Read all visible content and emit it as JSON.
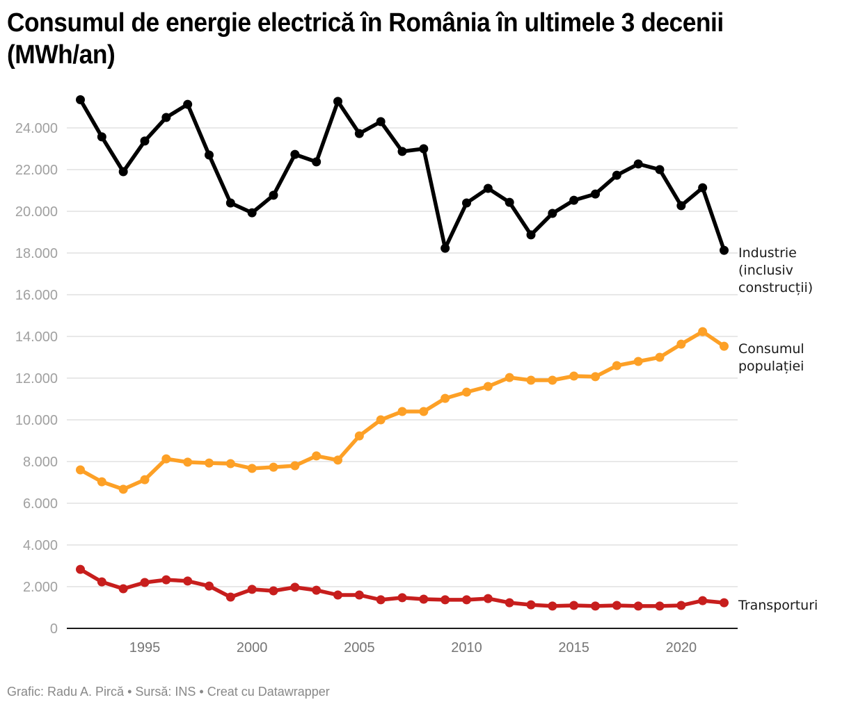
{
  "title": "Consumul de energie electrică în România în ultimele 3 decenii (MWh/an)",
  "footer": "Grafic: Radu A. Pircă • Sursă: INS • Creat cu Datawrapper",
  "chart_data": {
    "type": "line",
    "title": "Consumul de energie electrică în România în ultimele 3 decenii (MWh/an)",
    "xlabel": "",
    "ylabel": "",
    "x": [
      1992,
      1993,
      1994,
      1995,
      1996,
      1997,
      1998,
      1999,
      2000,
      2001,
      2002,
      2003,
      2004,
      2005,
      2006,
      2007,
      2008,
      2009,
      2010,
      2011,
      2012,
      2013,
      2014,
      2015,
      2016,
      2017,
      2018,
      2019,
      2020,
      2021,
      2022
    ],
    "xlim": [
      1992,
      2022
    ],
    "ylim": [
      0,
      25500
    ],
    "x_ticks": [
      1995,
      2000,
      2005,
      2010,
      2015,
      2020
    ],
    "x_tick_labels": [
      "1995",
      "2000",
      "2005",
      "2010",
      "2015",
      "2020"
    ],
    "y_ticks": [
      0,
      2000,
      4000,
      6000,
      8000,
      10000,
      12000,
      14000,
      16000,
      18000,
      20000,
      22000,
      24000
    ],
    "y_tick_labels": [
      "0",
      "2.000",
      "4.000",
      "6.000",
      "8.000",
      "10.000",
      "12.000",
      "14.000",
      "16.000",
      "18.000",
      "20.000",
      "22.000",
      "24.000"
    ],
    "grid": true,
    "legend": "direct-labels-right",
    "series": [
      {
        "name": "Industrie (inclusiv construcții)",
        "label_lines": [
          "Industrie",
          "(inclusiv",
          "construcții)"
        ],
        "color": "#000000",
        "values": [
          25350,
          23570,
          21900,
          23370,
          24500,
          25130,
          22700,
          20400,
          19930,
          20770,
          22730,
          22370,
          25270,
          23730,
          24300,
          22870,
          23000,
          18230,
          20400,
          21100,
          20430,
          18870,
          19900,
          20530,
          20830,
          21730,
          22270,
          22000,
          20270,
          21130,
          18130
        ]
      },
      {
        "name": "Consumul populației",
        "label_lines": [
          "Consumul",
          "populației"
        ],
        "color": "#fda026",
        "values": [
          7600,
          7030,
          6670,
          7130,
          8130,
          7970,
          7930,
          7900,
          7670,
          7730,
          7800,
          8270,
          8070,
          9230,
          10000,
          10400,
          10400,
          11030,
          11330,
          11600,
          12030,
          11900,
          11900,
          12100,
          12070,
          12600,
          12800,
          13000,
          13630,
          14230,
          13530
        ]
      },
      {
        "name": "Transporturi",
        "label_lines": [
          "Transporturi"
        ],
        "color": "#c71e1d",
        "values": [
          2830,
          2230,
          1900,
          2200,
          2330,
          2270,
          2030,
          1500,
          1870,
          1800,
          1970,
          1830,
          1600,
          1600,
          1370,
          1470,
          1400,
          1370,
          1370,
          1430,
          1230,
          1130,
          1070,
          1100,
          1070,
          1100,
          1070,
          1070,
          1100,
          1330,
          1230
        ]
      }
    ]
  },
  "colors": {
    "grid": "#e0e0e0",
    "axis": "#1a1a1a"
  }
}
